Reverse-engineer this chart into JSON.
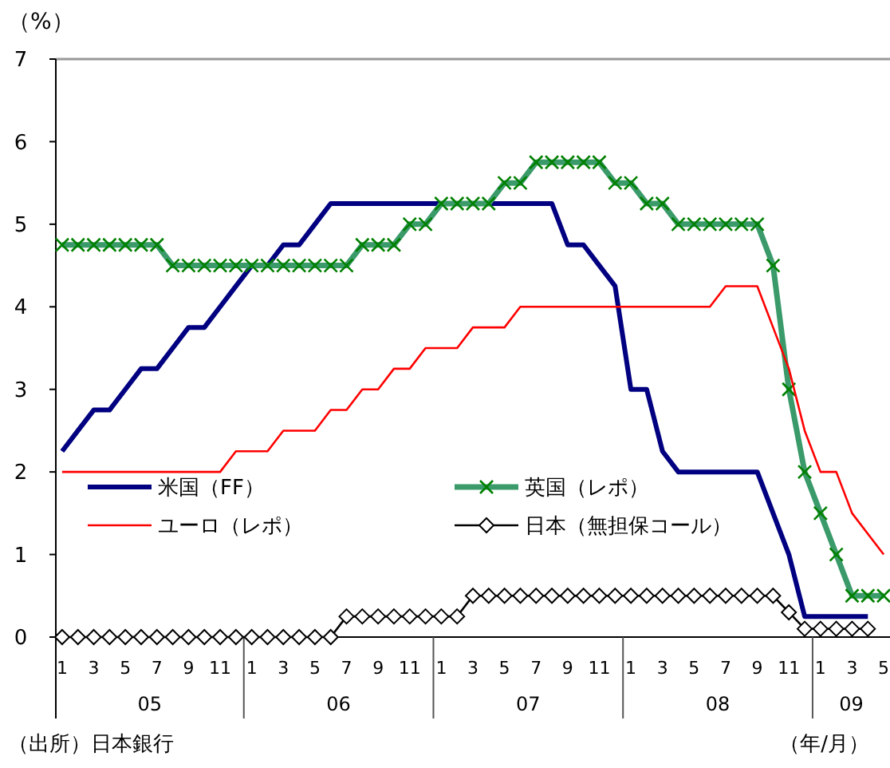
{
  "chart_data": {
    "type": "line",
    "ylabel": "（%）",
    "xlabel": "（年/月）",
    "categories": [
      "1",
      null,
      "3",
      null,
      "5",
      null,
      "7",
      null,
      "9",
      null,
      "11",
      null,
      "1",
      null,
      "3",
      null,
      "5",
      null,
      "7",
      null,
      "9",
      null,
      "11",
      null,
      "1",
      null,
      "3",
      null,
      "5",
      null,
      "7",
      null,
      "9",
      null,
      "11",
      null,
      "1",
      null,
      "3",
      null,
      "5",
      null,
      "7",
      null,
      "9",
      null,
      "11",
      null,
      "1",
      null,
      "3",
      null,
      "5"
    ],
    "series": [
      {
        "name": "米国（FF）",
        "color": "#000080",
        "marker": "none",
        "values": [
          2.25,
          2.5,
          2.75,
          2.75,
          3.0,
          3.25,
          3.25,
          3.5,
          3.75,
          3.75,
          4.0,
          4.25,
          4.5,
          4.5,
          4.75,
          4.75,
          5.0,
          5.25,
          5.25,
          5.25,
          5.25,
          5.25,
          5.25,
          5.25,
          5.25,
          5.25,
          5.25,
          5.25,
          5.25,
          5.25,
          5.25,
          5.25,
          4.75,
          4.75,
          4.5,
          4.25,
          3.0,
          3.0,
          2.25,
          2.0,
          2.0,
          2.0,
          2.0,
          2.0,
          2.0,
          1.5,
          1.0,
          0.25,
          0.25,
          0.25,
          0.25,
          0.25,
          null
        ]
      },
      {
        "name": "英国（レポ）",
        "color": "#3a9a6a",
        "marker": "cross",
        "values": [
          4.75,
          4.75,
          4.75,
          4.75,
          4.75,
          4.75,
          4.75,
          4.5,
          4.5,
          4.5,
          4.5,
          4.5,
          4.5,
          4.5,
          4.5,
          4.5,
          4.5,
          4.5,
          4.5,
          4.75,
          4.75,
          4.75,
          5.0,
          5.0,
          5.25,
          5.25,
          5.25,
          5.25,
          5.5,
          5.5,
          5.75,
          5.75,
          5.75,
          5.75,
          5.75,
          5.5,
          5.5,
          5.25,
          5.25,
          5.0,
          5.0,
          5.0,
          5.0,
          5.0,
          5.0,
          4.5,
          3.0,
          2.0,
          1.5,
          1.0,
          0.5,
          0.5,
          0.5
        ]
      },
      {
        "name": "ユーロ（レポ）",
        "color": "#ff0000",
        "marker": "none",
        "values": [
          2.0,
          2.0,
          2.0,
          2.0,
          2.0,
          2.0,
          2.0,
          2.0,
          2.0,
          2.0,
          2.0,
          2.25,
          2.25,
          2.25,
          2.5,
          2.5,
          2.5,
          2.75,
          2.75,
          3.0,
          3.0,
          3.25,
          3.25,
          3.5,
          3.5,
          3.5,
          3.75,
          3.75,
          3.75,
          4.0,
          4.0,
          4.0,
          4.0,
          4.0,
          4.0,
          4.0,
          4.0,
          4.0,
          4.0,
          4.0,
          4.0,
          4.0,
          4.25,
          4.25,
          4.25,
          3.75,
          3.25,
          2.5,
          2.0,
          2.0,
          1.5,
          1.25,
          1.0
        ]
      },
      {
        "name": "日本（無担保コール）",
        "color": "#000000",
        "marker": "diamond",
        "values": [
          0,
          0,
          0,
          0,
          0,
          0,
          0,
          0,
          0,
          0,
          0,
          0,
          0,
          0,
          0,
          0,
          0,
          0,
          0.25,
          0.25,
          0.25,
          0.25,
          0.25,
          0.25,
          0.25,
          0.25,
          0.5,
          0.5,
          0.5,
          0.5,
          0.5,
          0.5,
          0.5,
          0.5,
          0.5,
          0.5,
          0.5,
          0.5,
          0.5,
          0.5,
          0.5,
          0.5,
          0.5,
          0.5,
          0.5,
          0.5,
          0.3,
          0.1,
          0.1,
          0.1,
          0.1,
          0.1,
          null
        ]
      }
    ],
    "ylim": [
      0,
      7
    ],
    "yticks": [
      0,
      1,
      2,
      3,
      4,
      5,
      6,
      7
    ],
    "grid": false,
    "legend": "bottom",
    "annotations": [
      "05",
      "06",
      "07",
      "08",
      "09",
      "（出所）日本銀行"
    ]
  }
}
